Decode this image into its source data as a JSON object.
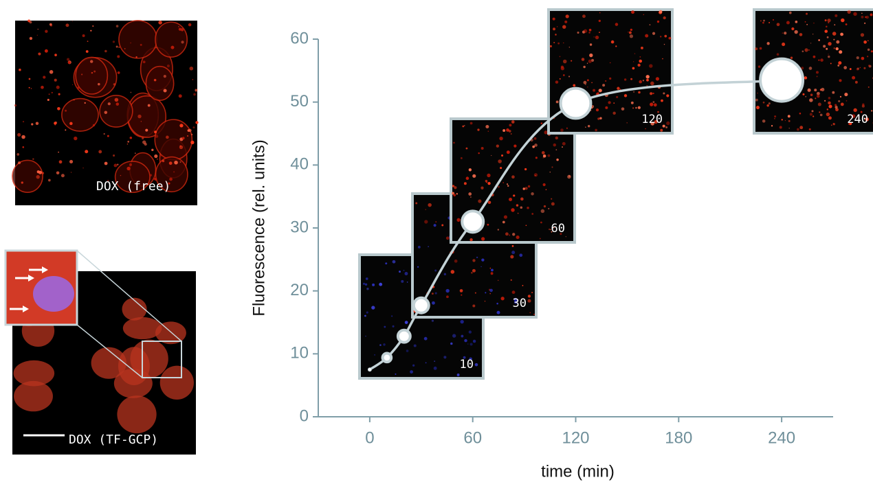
{
  "chart_data": {
    "type": "scatter",
    "x_label": "time (min)",
    "y_label": "Fluorescence (rel. units)",
    "x": [
      0,
      10,
      20,
      30,
      60,
      120,
      240
    ],
    "values": [
      7.5,
      9.4,
      12.8,
      17.7,
      31,
      49.8,
      53.5
    ],
    "xlim": [
      -30,
      270
    ],
    "xticks": [
      0,
      60,
      120,
      180,
      240
    ],
    "ylim": [
      0,
      60
    ],
    "yticks": [
      0,
      10,
      20,
      30,
      40,
      50,
      60
    ],
    "axis_color": "#7f9ea8",
    "line_color": "#c3d2d6",
    "insets": [
      "10",
      "30",
      "60",
      "120",
      "240"
    ]
  },
  "panels": [
    "DOX (free)",
    "DOX (TF-GCP)"
  ]
}
